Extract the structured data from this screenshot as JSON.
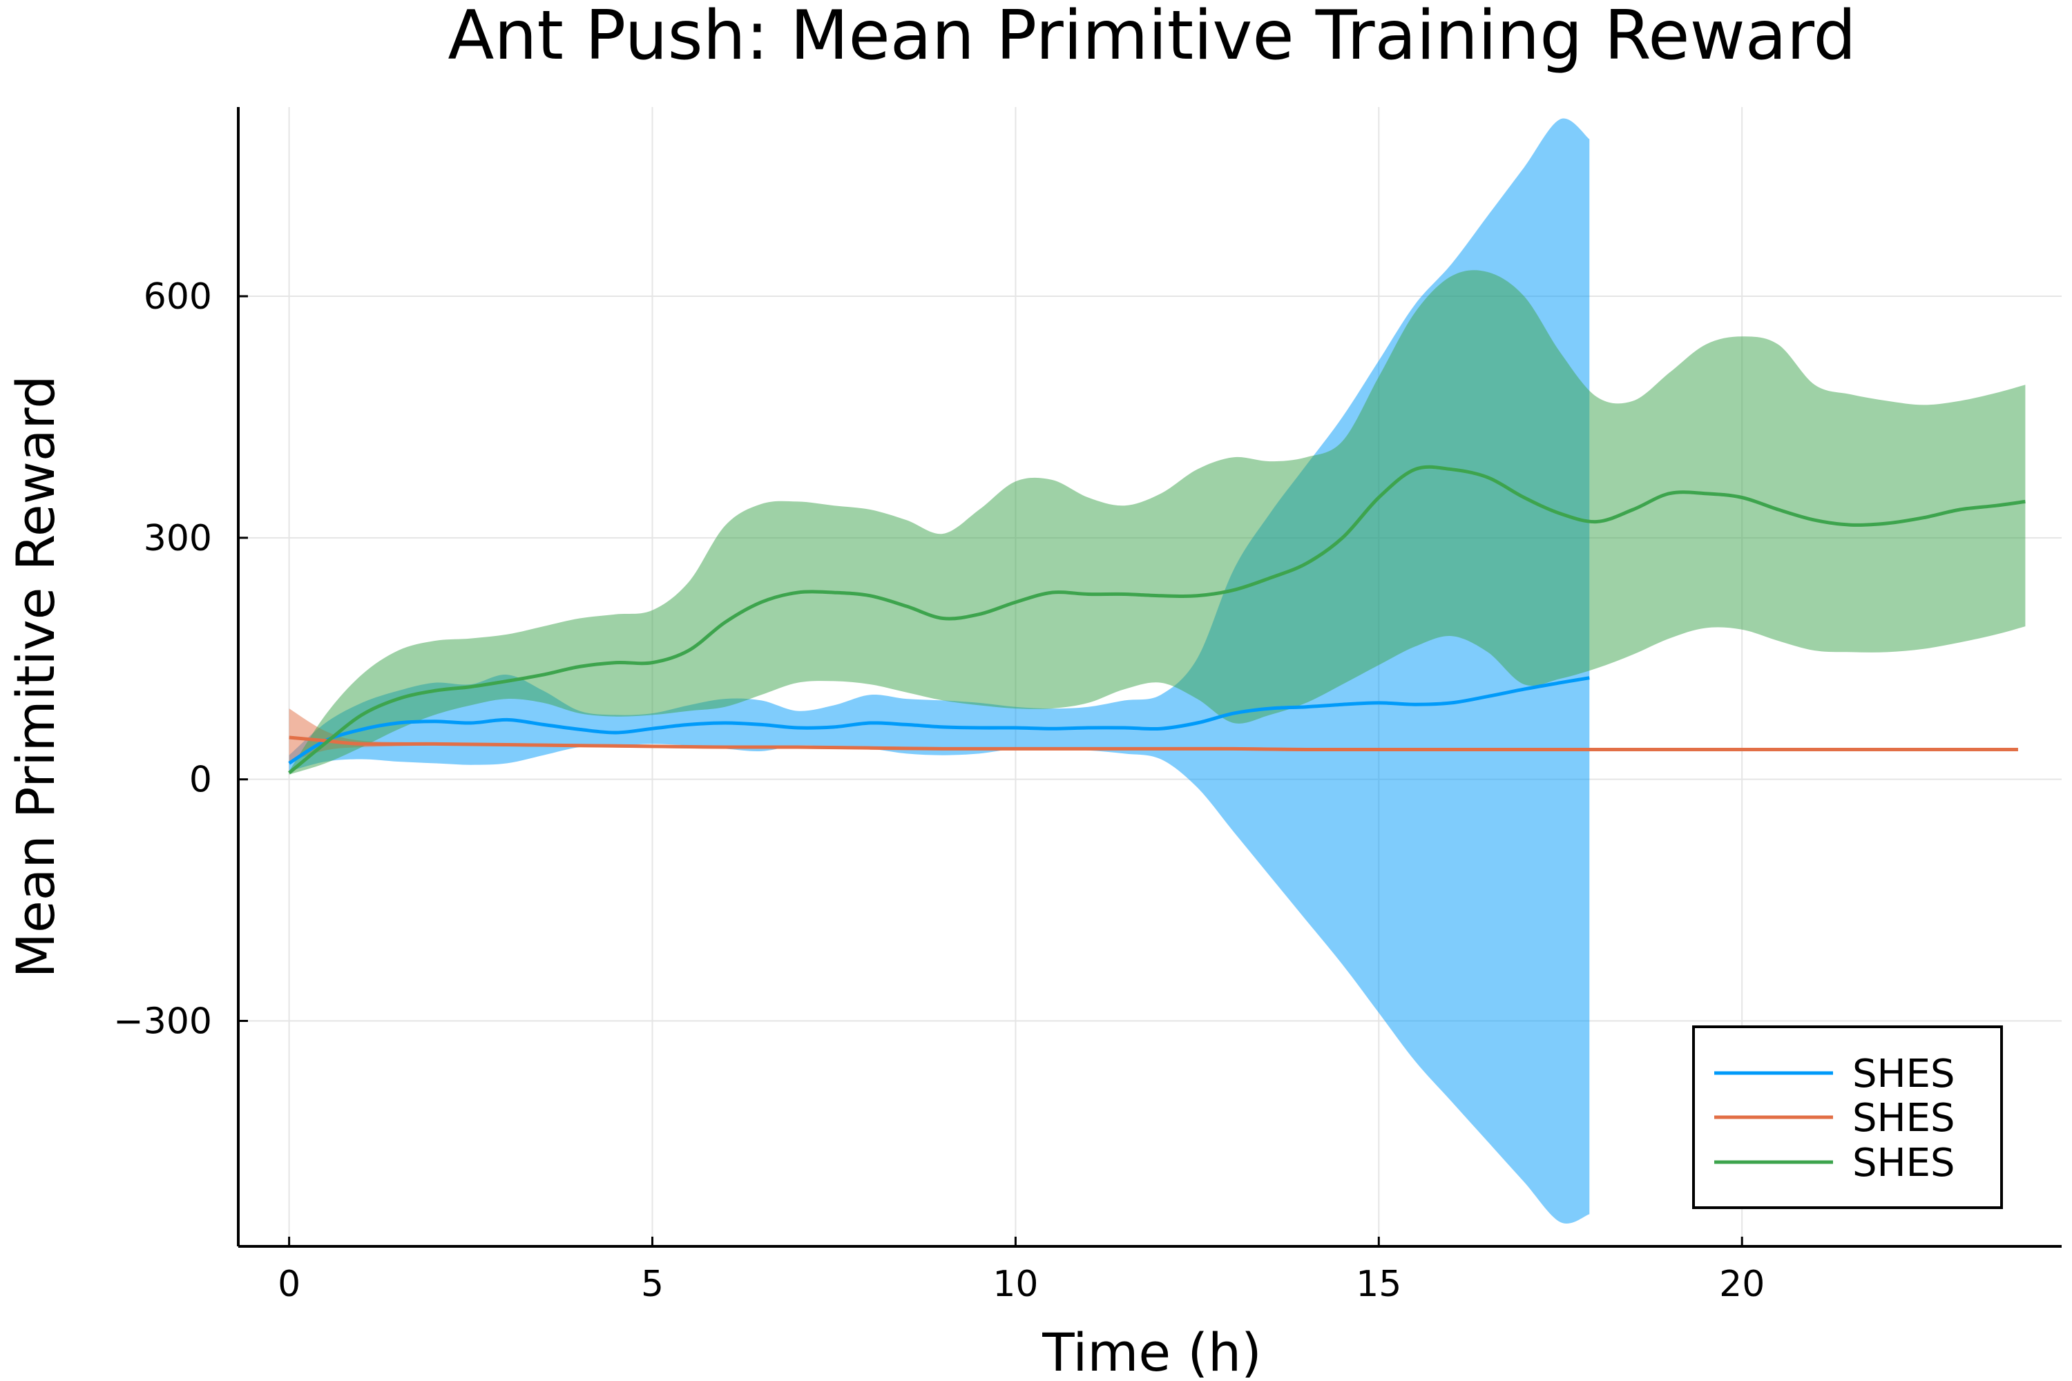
{
  "chart_data": {
    "type": "line",
    "title": "Ant Push: Mean Primitive Training Reward",
    "xlabel": "Time (h)",
    "ylabel": "Mean Primitive Reward",
    "xlim": [
      -0.7,
      24.4
    ],
    "ylim": [
      -580,
      835
    ],
    "xticks": [
      0,
      5,
      10,
      15,
      20
    ],
    "yticks": [
      -300,
      0,
      300,
      600
    ],
    "xtick_labels": [
      "0",
      "5",
      "10",
      "15",
      "20"
    ],
    "ytick_labels": [
      "−300",
      "0",
      "300",
      "600"
    ],
    "grid": true,
    "legend_position": "bottom-right",
    "series": [
      {
        "name": "SHES",
        "color": "#009af9",
        "fill_opacity": 0.5,
        "x": [
          0,
          0.5,
          1,
          1.5,
          2,
          2.5,
          3,
          3.5,
          4,
          4.5,
          5,
          5.5,
          6,
          6.5,
          7,
          7.5,
          8,
          8.5,
          9,
          9.5,
          10,
          10.5,
          11,
          11.5,
          12,
          12.5,
          13,
          13.5,
          14,
          14.5,
          15,
          15.5,
          16,
          16.5,
          17,
          17.5,
          17.9
        ],
        "mean": [
          20,
          48,
          62,
          70,
          72,
          70,
          74,
          68,
          62,
          58,
          63,
          68,
          70,
          68,
          64,
          65,
          70,
          68,
          65,
          64,
          64,
          63,
          64,
          64,
          63,
          70,
          82,
          88,
          90,
          93,
          95,
          93,
          95,
          103,
          112,
          120,
          126
        ],
        "upper": [
          30,
          70,
          95,
          110,
          120,
          118,
          130,
          110,
          85,
          80,
          82,
          92,
          100,
          98,
          85,
          92,
          105,
          100,
          98,
          95,
          90,
          88,
          90,
          98,
          105,
          150,
          260,
          330,
          390,
          450,
          520,
          590,
          640,
          700,
          760,
          820,
          795
        ],
        "lower": [
          10,
          22,
          25,
          22,
          20,
          18,
          20,
          30,
          40,
          42,
          44,
          42,
          38,
          35,
          42,
          40,
          38,
          32,
          30,
          32,
          38,
          38,
          36,
          32,
          25,
          -10,
          -65,
          -120,
          -175,
          -230,
          -290,
          -350,
          -400,
          -450,
          -500,
          -550,
          -540
        ]
      },
      {
        "name": "SHES",
        "color": "#e26f46",
        "fill_opacity": 0.5,
        "x": [
          0,
          0.5,
          1,
          2,
          3,
          4,
          5,
          6,
          7,
          8,
          9,
          10,
          11,
          12,
          13,
          14,
          15,
          16,
          17,
          18,
          19,
          20,
          21,
          22,
          23,
          23.8
        ],
        "mean": [
          52,
          48,
          44,
          44,
          43,
          42,
          41,
          40,
          40,
          39,
          38,
          38,
          38,
          38,
          38,
          37,
          37,
          37,
          37,
          37,
          37,
          37,
          37,
          37,
          37,
          37
        ],
        "upper": [
          88,
          60,
          48,
          46,
          45,
          44,
          43,
          42,
          42,
          41,
          40,
          40,
          40,
          40,
          40,
          39,
          39,
          39,
          39,
          39,
          39,
          39,
          39,
          39,
          39,
          39
        ],
        "lower": [
          22,
          36,
          40,
          42,
          41,
          40,
          39,
          38,
          38,
          37,
          36,
          36,
          36,
          36,
          36,
          35,
          35,
          35,
          35,
          35,
          35,
          35,
          35,
          35,
          35,
          35
        ]
      },
      {
        "name": "SHES",
        "color": "#3da44d",
        "fill_opacity": 0.5,
        "x": [
          0,
          0.5,
          1,
          1.5,
          2,
          2.5,
          3,
          3.5,
          4,
          4.5,
          5,
          5.5,
          6,
          6.5,
          7,
          7.5,
          8,
          8.5,
          9,
          9.5,
          10,
          10.5,
          11,
          11.5,
          12,
          12.5,
          13,
          13.5,
          14,
          14.5,
          15,
          15.5,
          16,
          16.5,
          17,
          17.5,
          18,
          18.5,
          19,
          19.5,
          20,
          20.5,
          21,
          21.5,
          22,
          22.5,
          23,
          23.5,
          23.9
        ],
        "mean": [
          8,
          45,
          80,
          100,
          110,
          115,
          122,
          130,
          140,
          145,
          145,
          160,
          195,
          220,
          232,
          232,
          228,
          215,
          200,
          205,
          220,
          232,
          230,
          230,
          228,
          228,
          235,
          250,
          268,
          300,
          350,
          385,
          385,
          375,
          350,
          330,
          320,
          335,
          355,
          355,
          350,
          335,
          322,
          316,
          318,
          325,
          335,
          340,
          345
        ],
        "upper": [
          10,
          80,
          130,
          160,
          172,
          175,
          180,
          190,
          200,
          205,
          210,
          245,
          315,
          342,
          345,
          340,
          335,
          322,
          305,
          335,
          370,
          372,
          350,
          340,
          355,
          385,
          400,
          395,
          400,
          420,
          500,
          580,
          625,
          630,
          600,
          530,
          475,
          470,
          505,
          540,
          550,
          540,
          490,
          478,
          470,
          465,
          470,
          480,
          490
        ],
        "lower": [
          6,
          20,
          40,
          62,
          80,
          92,
          100,
          95,
          82,
          78,
          80,
          85,
          90,
          105,
          120,
          122,
          118,
          108,
          98,
          92,
          88,
          88,
          95,
          112,
          120,
          100,
          70,
          80,
          95,
          118,
          142,
          165,
          178,
          158,
          118,
          125,
          138,
          155,
          175,
          188,
          186,
          172,
          160,
          158,
          158,
          162,
          170,
          180,
          190
        ]
      }
    ]
  }
}
